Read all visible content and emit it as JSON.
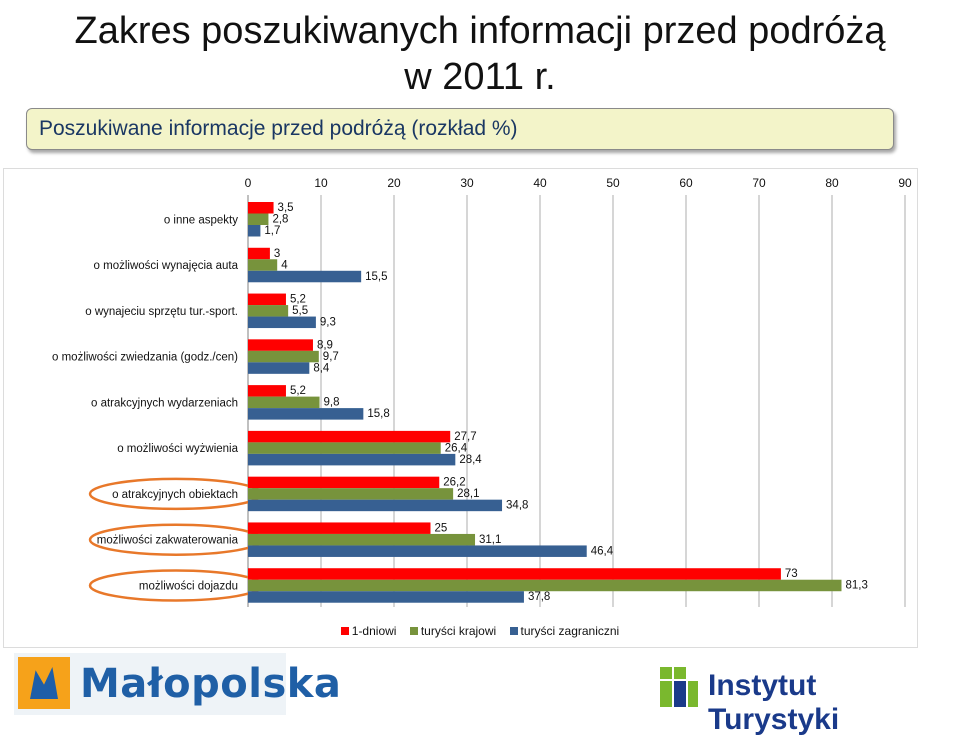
{
  "header": {
    "title_line1": "Zakres poszukiwanych informacji przed podróżą",
    "title_line2": "w 2011 r.",
    "subtitle": "Poszukiwane informacje przed podróżą (rozkład %)"
  },
  "chart_data": {
    "type": "bar",
    "orientation": "horizontal",
    "xlim": [
      0,
      90
    ],
    "x_ticks": [
      "0",
      "10",
      "20",
      "30",
      "40",
      "50",
      "60",
      "70",
      "80",
      "90"
    ],
    "categories": [
      "o inne aspekty",
      "o możliwości  wynajęcia auta",
      "o wynajeciu sprzętu tur.-sport.",
      "o możliwości  zwiedzania (godz./cen)",
      "o atrakcyjnych  wydarzeniach",
      "o możliwości  wyżwienia",
      "o atrakcyjnych  obiektach",
      "możliwości  zakwaterowania",
      "możliwości  dojazdu"
    ],
    "highlighted_categories": [
      "o atrakcyjnych  obiektach",
      "możliwości  zakwaterowania",
      "możliwości  dojazdu"
    ],
    "series": [
      {
        "name": "1-dniowi",
        "color": "#ff0000",
        "values": [
          3.5,
          3,
          5.2,
          8.9,
          5.2,
          27.7,
          26.2,
          25,
          73
        ],
        "labels": [
          "3,5",
          "3",
          "5,2",
          "8,9",
          "5,2",
          "27,7",
          "26,2",
          "25",
          "73"
        ]
      },
      {
        "name": "turyści krajowi",
        "color": "#77933c",
        "values": [
          2.8,
          4,
          5.5,
          9.7,
          9.8,
          26.4,
          28.1,
          31.1,
          81.3
        ],
        "labels": [
          "2,8",
          "4",
          "5,5",
          "9,7",
          "9,8",
          "26,4",
          "28,1",
          "31,1",
          "81,3"
        ]
      },
      {
        "name": "turyści zagraniczni",
        "color": "#376092",
        "values": [
          1.7,
          15.5,
          9.3,
          8.4,
          15.8,
          28.4,
          34.8,
          46.4,
          37.8
        ],
        "labels": [
          "1,7",
          "15,5",
          "9,3",
          "8,4",
          "15,8",
          "28,4",
          "34,8",
          "46,4",
          "37,8"
        ]
      }
    ],
    "grid": true,
    "legend_position": "bottom"
  },
  "footer": {
    "logo_left_text": "Małopolska",
    "logo_right_text": "Instytut Turystyki"
  },
  "colors": {
    "highlight_ellipse": "#e8782a",
    "subtitle_background": "#f3f4c9",
    "subtitle_text": "#1a3763"
  }
}
